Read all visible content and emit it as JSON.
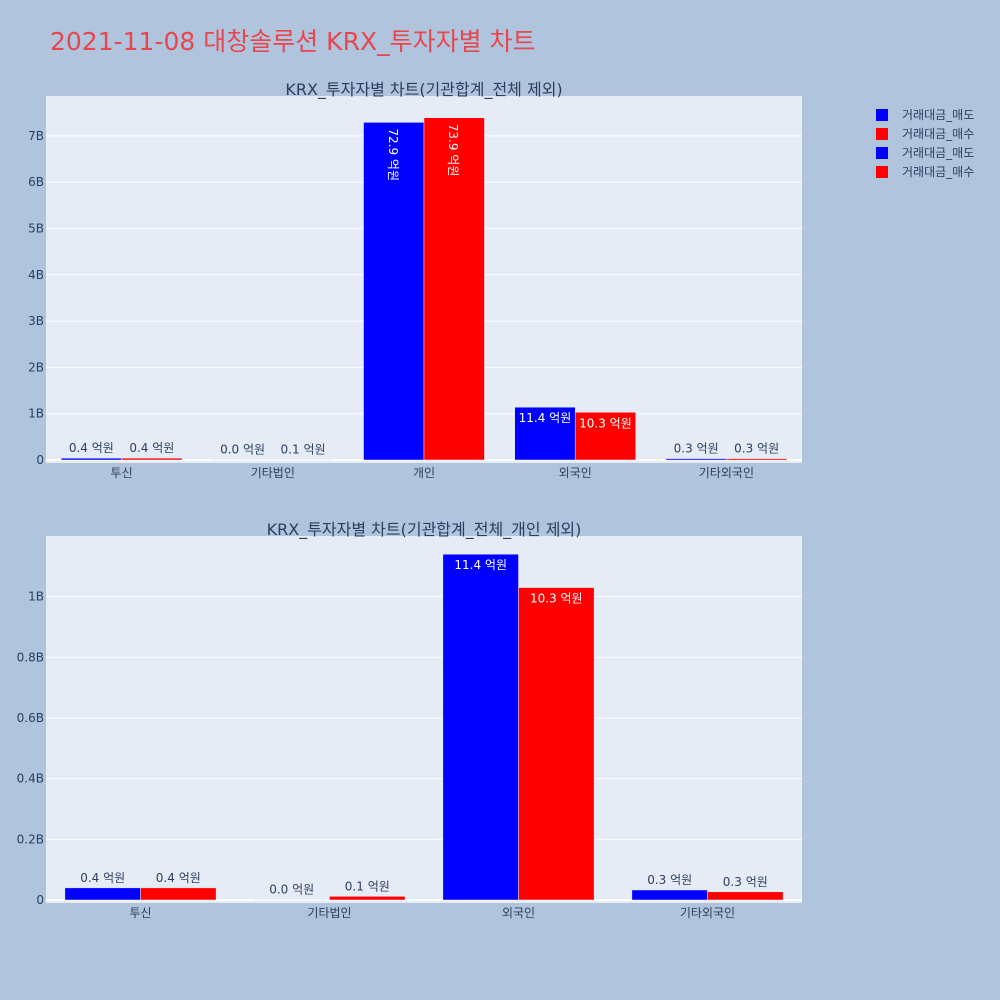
{
  "title": "2021-11-08 대창솔루션 KRX_투자자별 차트",
  "legend": [
    {
      "name": "거래대금_매도",
      "color": "#0000ff"
    },
    {
      "name": "거래대금_매수",
      "color": "#ff0000"
    },
    {
      "name": "거래대금_매도",
      "color": "#0000ff"
    },
    {
      "name": "거래대금_매수",
      "color": "#ff0000"
    }
  ],
  "chart_data": [
    {
      "type": "bar",
      "title": "KRX_투자자별 차트(기관합계_전체 제외)",
      "categories": [
        "투신",
        "기타법인",
        "개인",
        "외국인",
        "기타외국인"
      ],
      "series": [
        {
          "name": "거래대금_매도",
          "color": "#0000ff",
          "values": [
            40000000,
            0,
            7290000000,
            1140000000,
            30000000
          ],
          "labels": [
            "0.4 억원",
            "0.0 억원",
            "72.9 억원",
            "11.4 억원",
            "0.3 억원"
          ]
        },
        {
          "name": "거래대금_매수",
          "color": "#ff0000",
          "values": [
            40000000,
            10000000,
            7390000000,
            1030000000,
            30000000
          ],
          "labels": [
            "0.4 억원",
            "0.1 억원",
            "73.9 억원",
            "10.3 억원",
            "0.3 억원"
          ]
        }
      ],
      "yticks": [
        0,
        1000000000,
        2000000000,
        3000000000,
        4000000000,
        5000000000,
        6000000000,
        7000000000
      ],
      "ytick_labels": [
        "0",
        "1B",
        "2B",
        "3B",
        "4B",
        "5B",
        "6B",
        "7B"
      ],
      "ylim": [
        0,
        7860000000
      ],
      "grid": true
    },
    {
      "type": "bar",
      "title": "KRX_투자자별 차트(기관합계_전체_개인 제외)",
      "categories": [
        "투신",
        "기타법인",
        "외국인",
        "기타외국인"
      ],
      "series": [
        {
          "name": "거래대금_매도",
          "color": "#0000ff",
          "values": [
            40000000,
            0,
            1140000000,
            33000000
          ],
          "labels": [
            "0.4 억원",
            "0.0 억원",
            "11.4 억원",
            "0.3 억원"
          ]
        },
        {
          "name": "거래대금_매수",
          "color": "#ff0000",
          "values": [
            40000000,
            12000000,
            1030000000,
            27000000
          ],
          "labels": [
            "0.4 억원",
            "0.1 억원",
            "10.3 억원",
            "0.3 억원"
          ]
        }
      ],
      "yticks": [
        0,
        200000000,
        400000000,
        600000000,
        800000000,
        1000000000
      ],
      "ytick_labels": [
        "0",
        "0.2B",
        "0.4B",
        "0.6B",
        "0.8B",
        "1B"
      ],
      "ylim": [
        0,
        1200000000
      ],
      "grid": true
    }
  ]
}
